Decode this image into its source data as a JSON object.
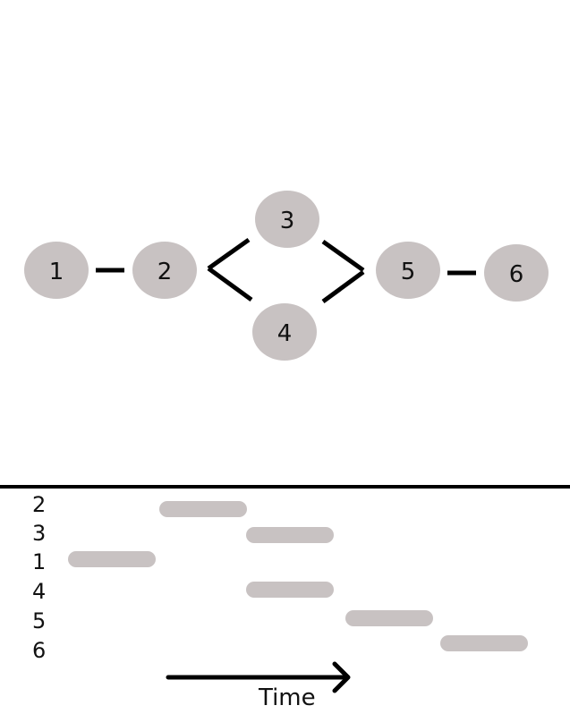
{
  "graph": {
    "nodes": [
      {
        "id": "1",
        "label": "1"
      },
      {
        "id": "2",
        "label": "2"
      },
      {
        "id": "3",
        "label": "3"
      },
      {
        "id": "4",
        "label": "4"
      },
      {
        "id": "5",
        "label": "5"
      },
      {
        "id": "6",
        "label": "6"
      }
    ],
    "edges": [
      {
        "from": "1",
        "to": "2"
      },
      {
        "from": "2",
        "to": "3"
      },
      {
        "from": "2",
        "to": "4"
      },
      {
        "from": "3",
        "to": "5"
      },
      {
        "from": "4",
        "to": "5"
      },
      {
        "from": "5",
        "to": "6"
      }
    ]
  },
  "timeline": {
    "rows": [
      {
        "label": "2",
        "start": 1,
        "end": 2
      },
      {
        "label": "3",
        "start": 2,
        "end": 3
      },
      {
        "label": "1",
        "start": 0,
        "end": 1
      },
      {
        "label": "4",
        "start": 2,
        "end": 3
      },
      {
        "label": "5",
        "start": 3,
        "end": 4
      },
      {
        "label": "6",
        "start": 4,
        "end": 5
      }
    ],
    "axis_label": "Time"
  },
  "colors": {
    "node_fill": "#c8c2c2",
    "bar_fill": "#c8c2c2",
    "line": "#000000"
  }
}
